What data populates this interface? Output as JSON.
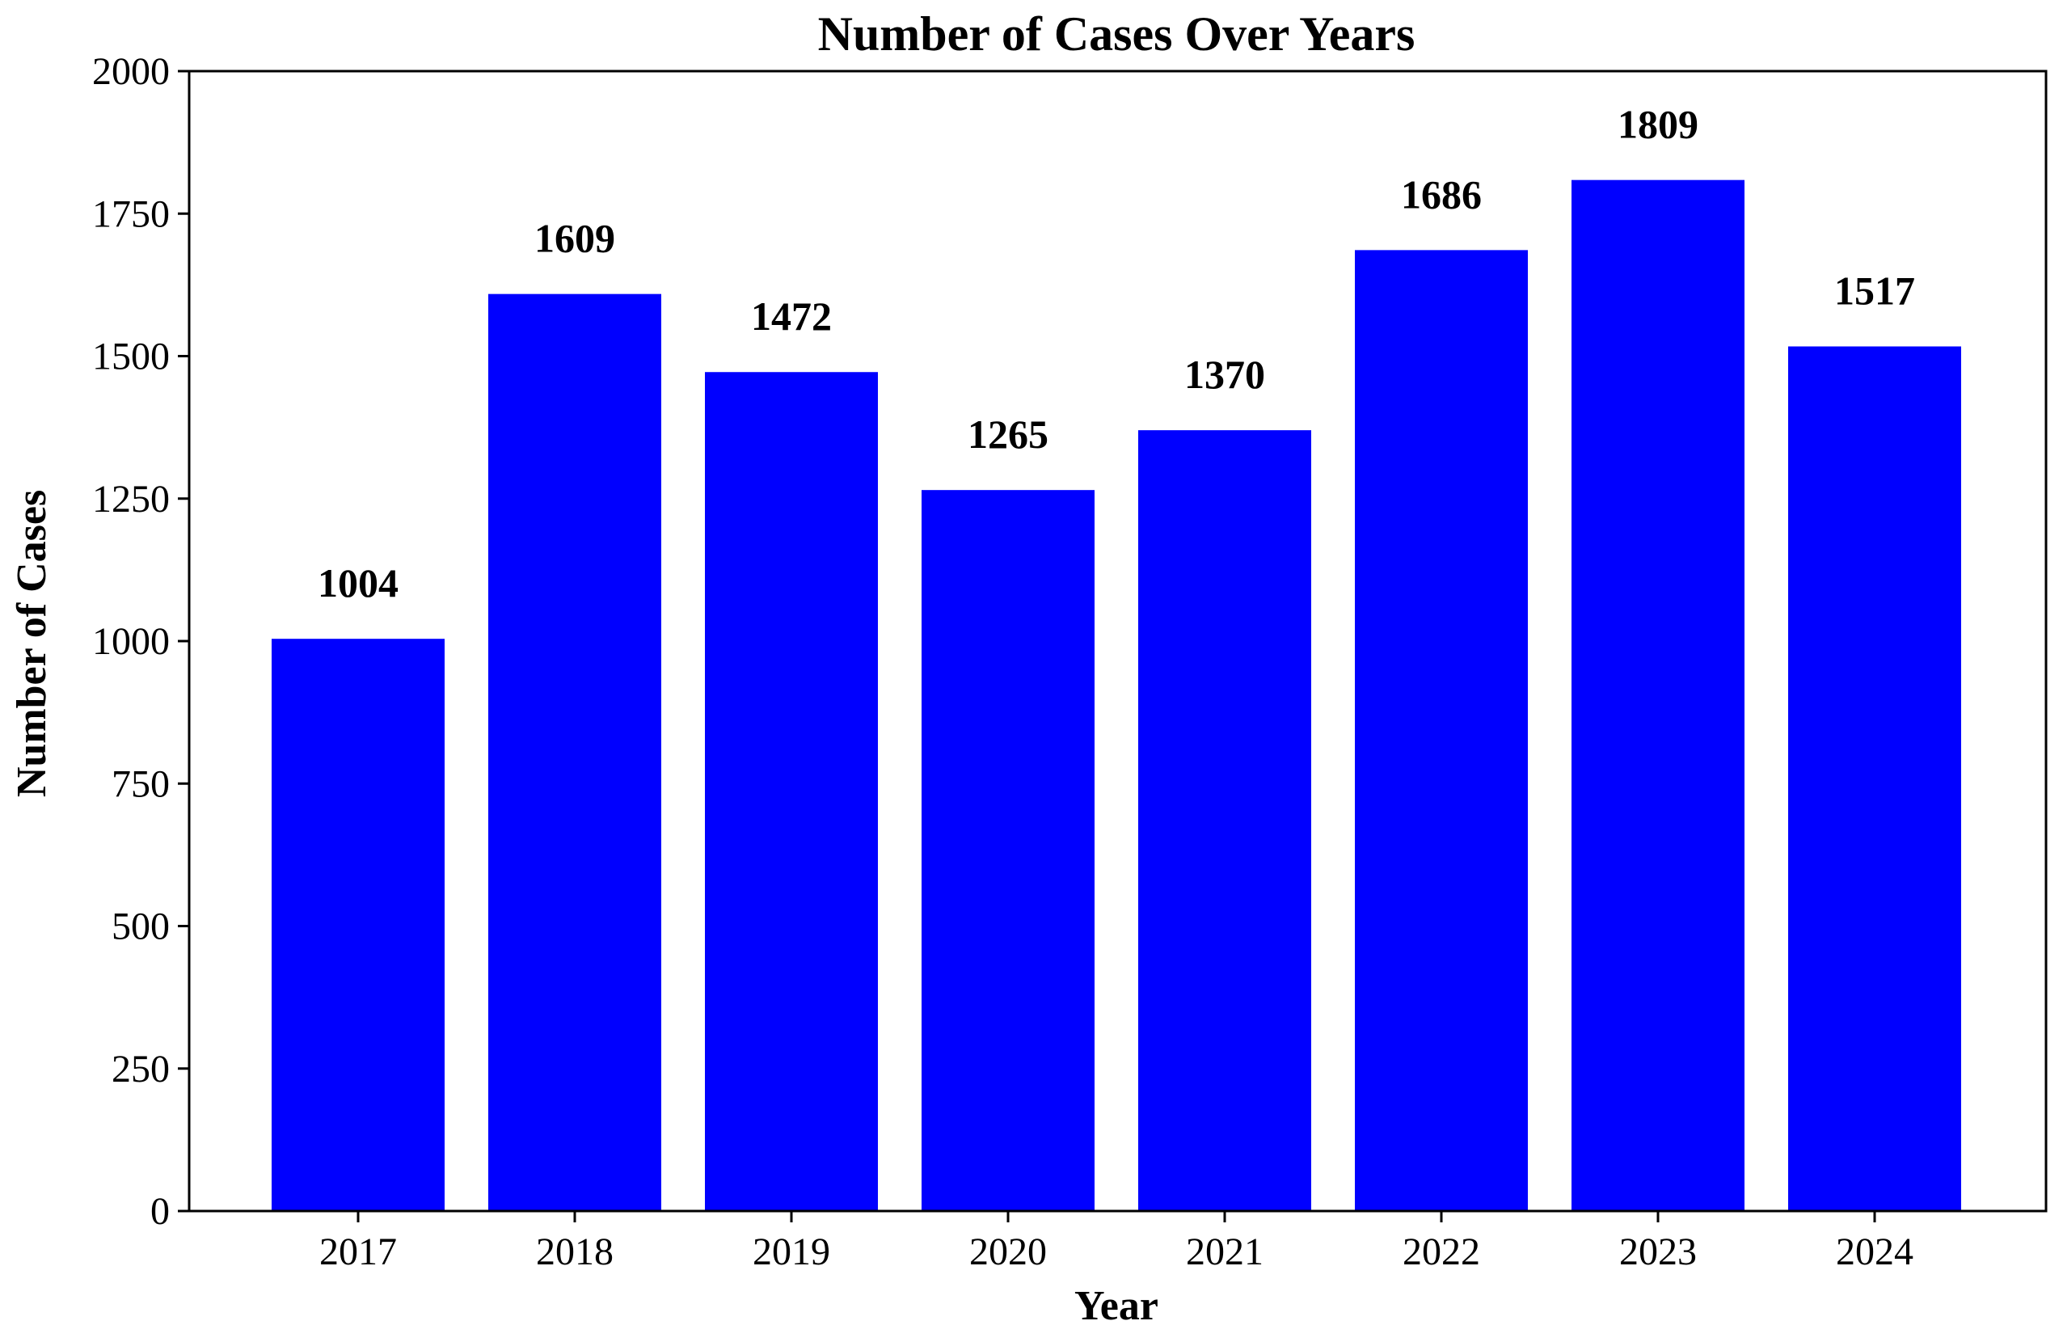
{
  "chart_data": {
    "type": "bar",
    "title": "Number of Cases Over Years",
    "xlabel": "Year",
    "ylabel": "Number of Cases",
    "categories": [
      "2017",
      "2018",
      "2019",
      "2020",
      "2021",
      "2022",
      "2023",
      "2024"
    ],
    "values": [
      1004,
      1609,
      1472,
      1265,
      1370,
      1686,
      1809,
      1517
    ],
    "data_labels": [
      "1004",
      "1609",
      "1472",
      "1265",
      "1370",
      "1686",
      "1809",
      "1517"
    ],
    "ylim": [
      0,
      2000
    ],
    "yticks": [
      0,
      250,
      500,
      750,
      1000,
      1250,
      1500,
      1750,
      2000
    ],
    "ytick_labels": [
      "0",
      "250",
      "500",
      "750",
      "1000",
      "1250",
      "1500",
      "1750",
      "2000"
    ],
    "bar_color": "#0000ff",
    "grid": false,
    "legend": "none"
  }
}
